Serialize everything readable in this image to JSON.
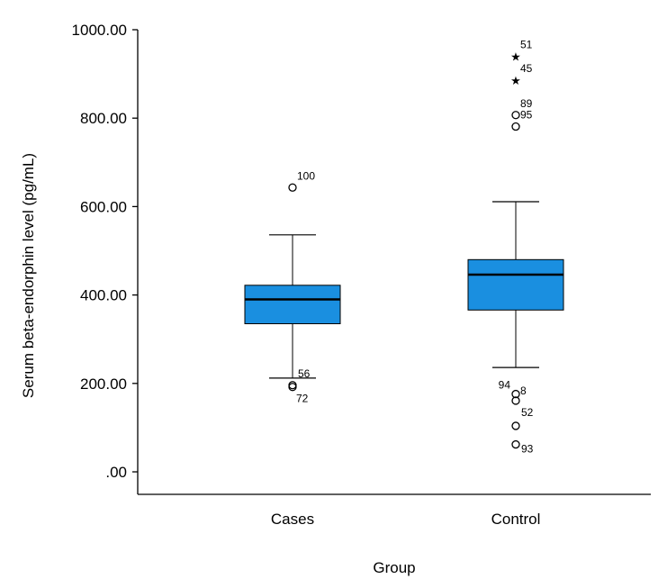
{
  "chart_data": {
    "type": "boxplot",
    "title": "",
    "xlabel": "Group",
    "ylabel": "Serum beta-endorphin level (pg/mL)",
    "ylim": [
      -50,
      1000
    ],
    "yticks": [
      0,
      200,
      400,
      600,
      800,
      1000
    ],
    "ytick_labels": [
      ".00",
      "200.00",
      "400.00",
      "600.00",
      "800.00",
      "1000.00"
    ],
    "grid": false,
    "box_color": "#1a8fe0",
    "categories": [
      "Cases",
      "Control"
    ],
    "groups": [
      {
        "name": "Cases",
        "whisker_low": 212,
        "q1": 335,
        "median": 390,
        "q3": 422,
        "whisker_high": 536,
        "outliers": [
          {
            "value": 643,
            "marker": "circle",
            "label": "100"
          },
          {
            "value": 196,
            "marker": "circle",
            "label": "56"
          },
          {
            "value": 192,
            "marker": "circle",
            "label": "72"
          }
        ]
      },
      {
        "name": "Control",
        "whisker_low": 236,
        "q1": 366,
        "median": 446,
        "q3": 480,
        "whisker_high": 611,
        "outliers": [
          {
            "value": 940,
            "marker": "star",
            "label": "51"
          },
          {
            "value": 886,
            "marker": "star",
            "label": "45"
          },
          {
            "value": 807,
            "marker": "circle",
            "label": "89"
          },
          {
            "value": 781,
            "marker": "circle",
            "label": "95"
          },
          {
            "value": 176,
            "marker": "circle",
            "label": "94"
          },
          {
            "value": 161,
            "marker": "circle",
            "label": "8"
          },
          {
            "value": 104,
            "marker": "circle",
            "label": "52"
          },
          {
            "value": 62,
            "marker": "circle",
            "label": "93"
          }
        ]
      }
    ]
  }
}
